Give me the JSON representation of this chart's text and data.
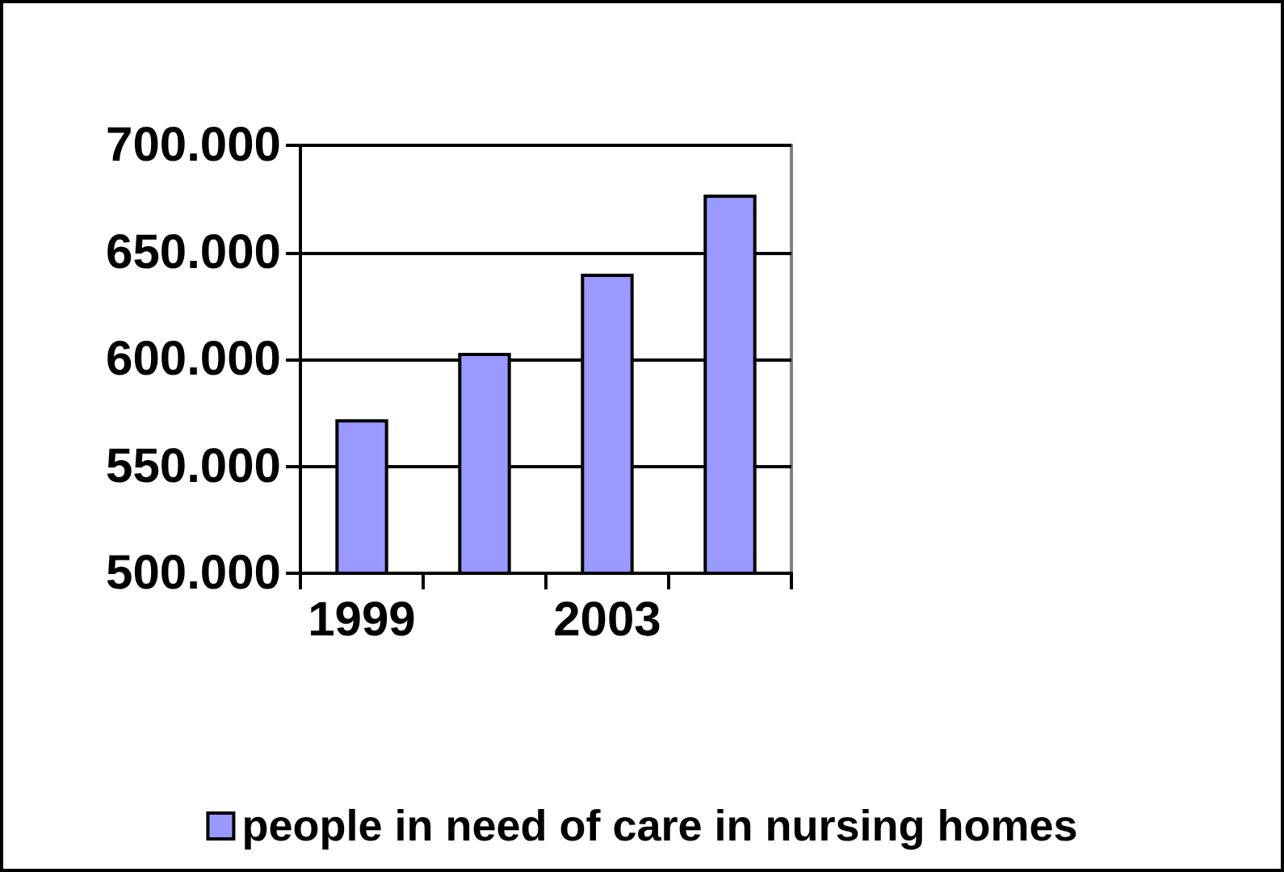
{
  "chart_data": {
    "type": "bar",
    "categories": [
      "1999",
      null,
      "2003",
      null
    ],
    "series": [
      {
        "name": "people in need of care in nursing homes",
        "color": "#9999ff",
        "values": [
          572000,
          603000,
          640000,
          677000
        ]
      }
    ],
    "ylim": [
      500000,
      700000
    ],
    "yticks": [
      {
        "value": 500000,
        "label": "500.000"
      },
      {
        "value": 550000,
        "label": "550.000"
      },
      {
        "value": 600000,
        "label": "600.000"
      },
      {
        "value": 650000,
        "label": "650.000"
      },
      {
        "value": 700000,
        "label": "700.000"
      }
    ],
    "grid": "y",
    "legend": "bottom"
  }
}
